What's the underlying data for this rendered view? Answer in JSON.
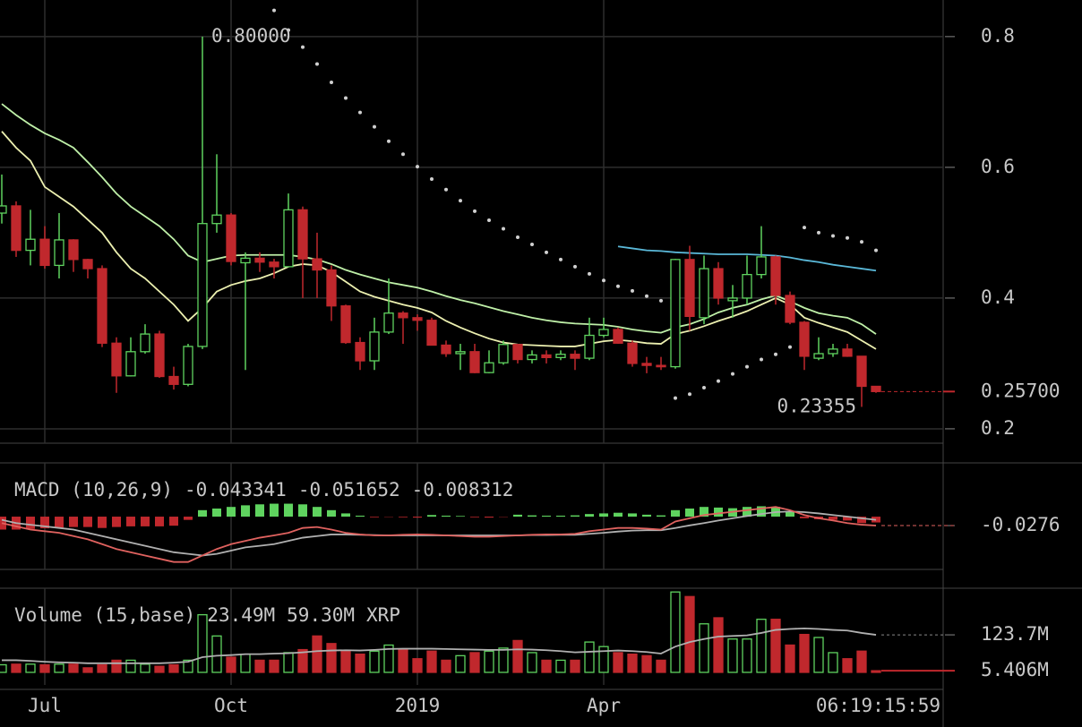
{
  "chart_data": [
    {
      "type": "candlestick",
      "categories": [
        null,
        null,
        null,
        "Jul",
        null,
        null,
        null,
        null,
        null,
        null,
        null,
        null,
        null,
        null,
        null,
        null,
        "Oct",
        null,
        null,
        null,
        null,
        null,
        null,
        null,
        null,
        null,
        null,
        null,
        null,
        "2019",
        null,
        null,
        null,
        null,
        null,
        null,
        null,
        null,
        null,
        null,
        null,
        null,
        "Apr",
        null,
        null,
        null,
        null,
        null,
        null,
        null,
        null,
        null,
        null,
        null,
        null,
        null,
        null,
        null,
        null,
        null,
        null,
        null
      ],
      "open": [
        0.53,
        0.541,
        0.473,
        0.49,
        0.45,
        0.489,
        0.459,
        0.445,
        0.331,
        0.281,
        0.318,
        0.345,
        0.28,
        0.268,
        0.326,
        0.514,
        0.527,
        0.454,
        0.461,
        0.455,
        0.448,
        0.535,
        0.46,
        0.443,
        0.388,
        0.332,
        0.304,
        0.348,
        0.377,
        0.37,
        0.366,
        0.328,
        0.315,
        0.318,
        0.286,
        0.301,
        0.329,
        0.306,
        0.313,
        0.309,
        0.314,
        0.308,
        0.343,
        0.352,
        0.331,
        0.3,
        0.297,
        0.295,
        0.459,
        0.37,
        0.445,
        0.396,
        0.4,
        0.436,
        0.463,
        0.404,
        0.363,
        0.308,
        0.315,
        0.322,
        0.311,
        0.265
      ],
      "high": [
        0.589,
        0.548,
        0.535,
        0.51,
        0.53,
        0.49,
        0.46,
        0.45,
        0.34,
        0.34,
        0.36,
        0.35,
        0.295,
        0.33,
        0.8,
        0.62,
        0.53,
        0.47,
        0.47,
        0.46,
        0.56,
        0.54,
        0.5,
        0.45,
        0.39,
        0.34,
        0.37,
        0.43,
        0.38,
        0.375,
        0.37,
        0.335,
        0.33,
        0.33,
        0.32,
        0.335,
        0.33,
        0.32,
        0.32,
        0.32,
        0.32,
        0.37,
        0.37,
        0.355,
        0.335,
        0.31,
        0.31,
        0.46,
        0.48,
        0.465,
        0.455,
        0.42,
        0.465,
        0.51,
        0.465,
        0.41,
        0.365,
        0.34,
        0.33,
        0.33,
        0.31,
        0.265
      ],
      "low": [
        0.514,
        0.463,
        0.45,
        0.445,
        0.43,
        0.44,
        0.43,
        0.325,
        0.255,
        0.28,
        0.315,
        0.278,
        0.26,
        0.265,
        0.322,
        0.5,
        0.45,
        0.29,
        0.44,
        0.43,
        0.45,
        0.4,
        0.4,
        0.365,
        0.33,
        0.29,
        0.29,
        0.345,
        0.33,
        0.35,
        0.33,
        0.31,
        0.29,
        0.285,
        0.285,
        0.298,
        0.3,
        0.3,
        0.3,
        0.305,
        0.29,
        0.305,
        0.34,
        0.33,
        0.295,
        0.285,
        0.29,
        0.292,
        0.35,
        0.36,
        0.39,
        0.37,
        0.39,
        0.43,
        0.39,
        0.36,
        0.29,
        0.305,
        0.31,
        0.31,
        0.23355,
        0.255
      ],
      "close": [
        0.541,
        0.473,
        0.49,
        0.45,
        0.489,
        0.459,
        0.445,
        0.331,
        0.281,
        0.318,
        0.345,
        0.28,
        0.268,
        0.326,
        0.514,
        0.527,
        0.456,
        0.461,
        0.455,
        0.448,
        0.535,
        0.46,
        0.443,
        0.388,
        0.332,
        0.304,
        0.348,
        0.377,
        0.37,
        0.366,
        0.328,
        0.315,
        0.318,
        0.286,
        0.301,
        0.329,
        0.306,
        0.313,
        0.309,
        0.314,
        0.308,
        0.343,
        0.352,
        0.331,
        0.3,
        0.297,
        0.295,
        0.459,
        0.372,
        0.445,
        0.4,
        0.4,
        0.436,
        0.463,
        0.404,
        0.363,
        0.311,
        0.315,
        0.322,
        0.311,
        0.265,
        0.257
      ],
      "up_color": "#5fd35f",
      "down_color": "#c0282d",
      "overlays": [
        {
          "color": "#bff0a8",
          "values": [
            0.697,
            0.68,
            0.665,
            0.652,
            0.642,
            0.63,
            0.608,
            0.585,
            0.56,
            0.54,
            0.525,
            0.51,
            0.49,
            0.465,
            0.455,
            0.46,
            0.465,
            0.466,
            0.466,
            0.466,
            0.466,
            0.463,
            0.459,
            0.452,
            0.443,
            0.436,
            0.43,
            0.424,
            0.42,
            0.416,
            0.41,
            0.403,
            0.397,
            0.392,
            0.386,
            0.38,
            0.375,
            0.37,
            0.366,
            0.363,
            0.361,
            0.36,
            0.359,
            0.356,
            0.352,
            0.349,
            0.347,
            0.355,
            0.36,
            0.368,
            0.378,
            0.385,
            0.39,
            0.398,
            0.404,
            0.395,
            0.385,
            0.377,
            0.373,
            0.37,
            0.36,
            0.345
          ]
        },
        {
          "color": "#ecf0b0",
          "values": [
            0.655,
            0.63,
            0.61,
            0.57,
            0.555,
            0.54,
            0.52,
            0.5,
            0.47,
            0.445,
            0.43,
            0.41,
            0.39,
            0.365,
            0.385,
            0.41,
            0.42,
            0.426,
            0.43,
            0.438,
            0.448,
            0.452,
            0.45,
            0.44,
            0.425,
            0.41,
            0.402,
            0.396,
            0.39,
            0.385,
            0.378,
            0.365,
            0.355,
            0.346,
            0.338,
            0.332,
            0.329,
            0.328,
            0.327,
            0.326,
            0.326,
            0.33,
            0.334,
            0.336,
            0.334,
            0.331,
            0.33,
            0.345,
            0.35,
            0.357,
            0.365,
            0.372,
            0.38,
            0.39,
            0.4,
            0.39,
            0.37,
            0.362,
            0.355,
            0.348,
            0.335,
            0.322
          ]
        },
        {
          "color": "#5ab8d8",
          "values": [
            null,
            null,
            null,
            null,
            null,
            null,
            null,
            null,
            null,
            null,
            null,
            null,
            null,
            null,
            null,
            null,
            null,
            null,
            null,
            null,
            null,
            null,
            null,
            null,
            null,
            null,
            null,
            null,
            null,
            null,
            null,
            null,
            null,
            null,
            null,
            null,
            null,
            null,
            null,
            null,
            null,
            null,
            null,
            0.479,
            0.476,
            0.473,
            0.472,
            0.47,
            0.469,
            0.468,
            0.467,
            0.467,
            0.467,
            0.466,
            0.465,
            0.462,
            0.458,
            0.455,
            0.451,
            0.448,
            0.445,
            0.442
          ]
        }
      ],
      "sar": {
        "color": "#d0d0d0",
        "values": [
          null,
          null,
          null,
          null,
          null,
          null,
          null,
          null,
          null,
          null,
          null,
          null,
          null,
          null,
          null,
          null,
          null,
          null,
          null,
          0.84,
          0.81,
          0.784,
          0.758,
          0.73,
          0.706,
          0.684,
          0.662,
          0.64,
          0.62,
          0.601,
          0.582,
          0.566,
          0.549,
          0.533,
          0.519,
          0.506,
          0.493,
          0.482,
          0.47,
          0.459,
          0.448,
          0.437,
          0.427,
          0.418,
          0.411,
          0.403,
          0.396,
          0.247,
          0.253,
          0.263,
          0.273,
          0.284,
          0.295,
          0.306,
          0.314,
          0.325,
          0.508,
          0.5,
          0.495,
          0.492,
          0.486,
          0.473
        ]
      },
      "annotations": [
        {
          "value": 0.8,
          "label": "0.80000"
        },
        {
          "value": 0.23355,
          "label": "0.23355"
        }
      ],
      "last_price": {
        "value": 0.257,
        "label": "0.25700"
      },
      "ylim": [
        0.178,
        0.856
      ],
      "yticks": [
        0.2,
        0.4,
        0.6,
        0.8
      ]
    },
    {
      "type": "macd",
      "title": "MACD (10,26,9)",
      "legend_values": [
        {
          "value": -0.043341,
          "color": "#e0625f"
        },
        {
          "value": -0.051652,
          "color": "#e0625f"
        },
        {
          "value": -0.008312,
          "color": "#d0d0d0"
        }
      ],
      "histogram": [
        -0.04,
        -0.04,
        -0.038,
        -0.036,
        -0.034,
        -0.032,
        -0.032,
        -0.035,
        -0.032,
        -0.03,
        -0.03,
        -0.03,
        -0.028,
        -0.01,
        0.02,
        0.025,
        0.03,
        0.035,
        0.038,
        0.04,
        0.04,
        0.038,
        0.03,
        0.02,
        0.01,
        0.003,
        -0.002,
        -0.001,
        -0.002,
        -0.003,
        0.005,
        0.003,
        0.002,
        -0.002,
        -0.003,
        -0.001,
        0.006,
        0.004,
        0.003,
        0.003,
        0.004,
        0.008,
        0.01,
        0.012,
        0.01,
        0.006,
        0.004,
        0.02,
        0.025,
        0.03,
        0.028,
        0.026,
        0.03,
        0.032,
        0.03,
        0.015,
        -0.005,
        -0.008,
        -0.01,
        -0.012,
        -0.02,
        -0.018
      ],
      "macd": {
        "color": "#e0625f",
        "values": [
          -0.02,
          -0.03,
          -0.04,
          -0.045,
          -0.05,
          -0.06,
          -0.07,
          -0.085,
          -0.1,
          -0.11,
          -0.12,
          -0.13,
          -0.14,
          -0.14,
          -0.12,
          -0.1,
          -0.085,
          -0.075,
          -0.065,
          -0.058,
          -0.05,
          -0.035,
          -0.032,
          -0.04,
          -0.05,
          -0.055,
          -0.058,
          -0.058,
          -0.056,
          -0.055,
          -0.056,
          -0.058,
          -0.06,
          -0.062,
          -0.062,
          -0.06,
          -0.058,
          -0.056,
          -0.055,
          -0.055,
          -0.053,
          -0.045,
          -0.04,
          -0.035,
          -0.035,
          -0.037,
          -0.04,
          -0.015,
          -0.005,
          0.005,
          0.01,
          0.015,
          0.02,
          0.025,
          0.03,
          0.02,
          0.005,
          -0.005,
          -0.012,
          -0.02,
          -0.025,
          -0.0276
        ]
      },
      "signal": {
        "color": "#b0b0b0",
        "values": [
          -0.01,
          -0.02,
          -0.025,
          -0.03,
          -0.035,
          -0.04,
          -0.05,
          -0.06,
          -0.07,
          -0.08,
          -0.09,
          -0.1,
          -0.11,
          -0.115,
          -0.12,
          -0.115,
          -0.105,
          -0.095,
          -0.09,
          -0.085,
          -0.075,
          -0.065,
          -0.06,
          -0.055,
          -0.055,
          -0.056,
          -0.057,
          -0.058,
          -0.058,
          -0.058,
          -0.058,
          -0.058,
          -0.058,
          -0.058,
          -0.058,
          -0.058,
          -0.058,
          -0.057,
          -0.057,
          -0.056,
          -0.056,
          -0.053,
          -0.05,
          -0.046,
          -0.043,
          -0.042,
          -0.042,
          -0.035,
          -0.027,
          -0.02,
          -0.012,
          -0.005,
          0.002,
          0.008,
          0.014,
          0.016,
          0.014,
          0.01,
          0.005,
          0,
          -0.005,
          -0.01
        ]
      },
      "ylim": [
        -0.163,
        0.166
      ],
      "yticks": [
        -0.0276
      ]
    },
    {
      "type": "volume",
      "title": "Volume (15,base)",
      "legend_values": [
        {
          "value": 23.49,
          "label": "23.49M",
          "color": "#5fd35f"
        },
        {
          "value": 59.3,
          "label": "59.30M",
          "color": "#d0d0d0"
        }
      ],
      "unit": "XRP",
      "values": [
        25,
        27,
        27,
        25,
        27,
        27,
        15,
        25,
        40,
        40,
        27,
        20,
        25,
        40,
        190,
        120,
        50,
        60,
        40,
        40,
        65,
        75,
        120,
        95,
        70,
        60,
        70,
        90,
        75,
        45,
        70,
        40,
        55,
        65,
        70,
        80,
        105,
        65,
        40,
        40,
        40,
        100,
        85,
        65,
        60,
        55,
        40,
        265,
        250,
        160,
        180,
        110,
        110,
        175,
        175,
        90,
        125,
        115,
        65,
        45,
        70,
        5.406
      ],
      "ma": {
        "color": "#b0b0b0",
        "values": [
          40,
          40,
          38,
          35,
          33,
          32,
          30,
          30,
          30,
          30,
          30,
          30,
          32,
          35,
          50,
          55,
          57,
          60,
          60,
          62,
          63,
          66,
          70,
          72,
          73,
          72,
          74,
          77,
          78,
          78,
          78,
          77,
          76,
          75,
          74,
          74,
          76,
          75,
          73,
          70,
          66,
          68,
          70,
          72,
          70,
          67,
          62,
          85,
          100,
          110,
          118,
          120,
          122,
          130,
          140,
          143,
          145,
          143,
          140,
          138,
          130,
          123.7
        ]
      },
      "ylim": [
        -41.4,
        277.4
      ],
      "yticks": [
        {
          "value": 123.7,
          "label": "123.7M"
        },
        {
          "value": 5.406,
          "label": "5.406M"
        }
      ]
    }
  ],
  "countdown": "06:19:15:59"
}
